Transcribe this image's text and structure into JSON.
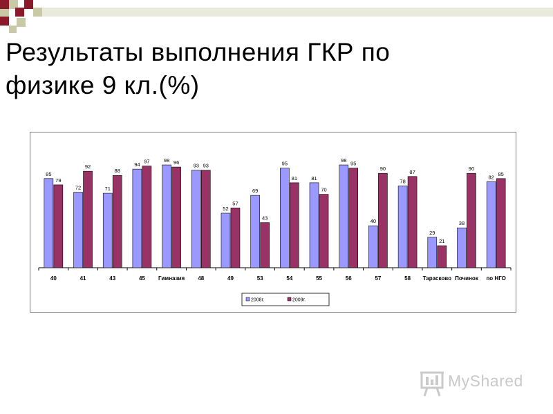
{
  "slide": {
    "title_line1": "Результаты выполнения ГКР по",
    "title_line2": "физике 9 кл.(%)"
  },
  "colors": {
    "series_2008": "#9999ff",
    "series_2009": "#993366",
    "deco_dark": "#8b1a2b",
    "deco_light": "#c9c9a8"
  },
  "chart_data": {
    "type": "bar",
    "title": "",
    "xlabel": "",
    "ylabel": "",
    "ylim": [
      0,
      100
    ],
    "grid": false,
    "legend_placement": "bottom",
    "categories": [
      "40",
      "41",
      "43",
      "45",
      "Гимназия",
      "48",
      "49",
      "53",
      "54",
      "55",
      "56",
      "57",
      "58",
      "Тарасково",
      "Починок",
      "по НГО"
    ],
    "series": [
      {
        "name": "2008г.",
        "values": [
          85,
          72,
          71,
          94,
          98,
          93,
          52,
          69,
          95,
          81,
          98,
          40,
          78,
          29,
          38,
          82
        ]
      },
      {
        "name": "2009г.",
        "values": [
          79,
          92,
          88,
          97,
          96,
          93,
          57,
          43,
          81,
          70,
          95,
          90,
          87,
          21,
          90,
          85
        ]
      }
    ]
  },
  "watermark": {
    "text": "MyShared"
  }
}
